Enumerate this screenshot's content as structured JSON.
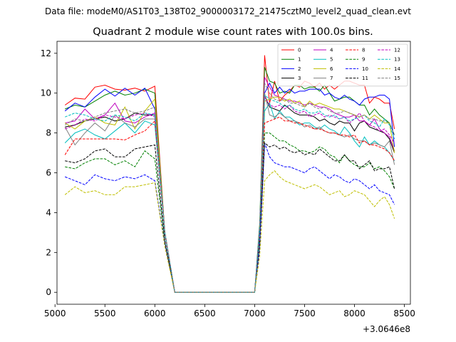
{
  "chart_data": {
    "type": "line",
    "suptitle": "Data file: modeM0/AS1T03_138T02_9000003172_21475cztM0_level2_quad_clean.evt",
    "title": "Quadrant 2 module wise count rates with 100.0s bins.",
    "xlabel": "",
    "ylabel": "",
    "x_offset_label": "+3.0646e8",
    "xlim": [
      5020,
      8560
    ],
    "ylim": [
      -0.6,
      12.6
    ],
    "xticks": [
      5000,
      5500,
      6000,
      6500,
      7000,
      7500,
      8000,
      8500
    ],
    "yticks": [
      0,
      2,
      4,
      6,
      8,
      10,
      12
    ],
    "legend_position": "top-right",
    "legend_columns": 4,
    "x": [
      5100,
      5200,
      5300,
      5400,
      5500,
      5600,
      5700,
      5800,
      5900,
      6000,
      6100,
      6200,
      6300,
      6400,
      6500,
      6600,
      6700,
      6800,
      6900,
      7000,
      7050,
      7100,
      7150,
      7200,
      7250,
      7300,
      7350,
      7400,
      7450,
      7500,
      7550,
      7600,
      7650,
      7700,
      7750,
      7800,
      7850,
      7900,
      7950,
      8000,
      8050,
      8100,
      8150,
      8200,
      8250,
      8300,
      8350,
      8400
    ],
    "series": [
      {
        "name": "0",
        "color": "#ff0000",
        "dash": "solid",
        "values": [
          9.4,
          9.75,
          9.7,
          10.3,
          10.4,
          10.2,
          10.15,
          10.25,
          10.1,
          10.35,
          3,
          0,
          0,
          0,
          0,
          0,
          0,
          0,
          0,
          0,
          3,
          11.9,
          9.5,
          10.6,
          9.6,
          9.9,
          10.1,
          10.4,
          10.3,
          10.6,
          10.5,
          10.3,
          10.5,
          10.2,
          10.4,
          10.2,
          10.4,
          10.6,
          10.6,
          10.5,
          10.4,
          10.4,
          9.5,
          9.8,
          9.7,
          9.5,
          9.5,
          8.2
        ]
      },
      {
        "name": "1",
        "color": "#008000",
        "dash": "solid",
        "values": [
          9.2,
          9.4,
          9.3,
          9.6,
          9.9,
          10.1,
          9.9,
          10.0,
          10.2,
          10.0,
          3,
          0,
          0,
          0,
          0,
          0,
          0,
          0,
          0,
          0,
          3.4,
          11.3,
          10.6,
          10.5,
          10.0,
          10.1,
          10.0,
          10.4,
          10.4,
          10.2,
          10.3,
          10.3,
          10.1,
          10.4,
          10.0,
          9.6,
          9.7,
          9.8,
          9.8,
          9.6,
          9.4,
          9.4,
          8.9,
          9.2,
          8.9,
          8.7,
          8.5,
          7.9
        ]
      },
      {
        "name": "2",
        "color": "#0000ff",
        "dash": "solid",
        "values": [
          9.1,
          9.5,
          9.3,
          9.8,
          10.2,
          9.85,
          10.25,
          9.9,
          10.25,
          9.2,
          3,
          0,
          0,
          0,
          0,
          0,
          0,
          0,
          0,
          0,
          3.2,
          10.0,
          10.5,
          10.0,
          10.3,
          10.0,
          10.2,
          10.0,
          10.1,
          10.1,
          10.2,
          10.2,
          10.2,
          9.9,
          10.0,
          9.8,
          9.7,
          9.9,
          9.7,
          9.6,
          9.4,
          9.7,
          9.8,
          9.8,
          9.9,
          9.9,
          9.7,
          7.3
        ]
      },
      {
        "name": "3",
        "color": "#000000",
        "dash": "solid",
        "values": [
          8.3,
          8.4,
          8.6,
          8.7,
          8.8,
          8.6,
          8.7,
          9.0,
          8.9,
          8.9,
          3,
          0,
          0,
          0,
          0,
          0,
          0,
          0,
          0,
          0,
          2.7,
          9.9,
          9.3,
          9.2,
          9.1,
          9.4,
          9.2,
          9.0,
          8.9,
          8.9,
          8.9,
          8.8,
          8.6,
          8.7,
          8.5,
          8.4,
          8.6,
          8.5,
          8.5,
          8.1,
          8.5,
          8.6,
          8.3,
          8.2,
          8.1,
          8.0,
          7.7,
          7.0
        ]
      },
      {
        "name": "4",
        "color": "#bf00bf",
        "dash": "solid",
        "values": [
          8.5,
          8.6,
          9.2,
          8.7,
          8.9,
          9.5,
          8.6,
          8.5,
          8.8,
          9.0,
          3,
          0,
          0,
          0,
          0,
          0,
          0,
          0,
          0,
          0,
          3,
          10.8,
          10.3,
          9.9,
          9.8,
          9.7,
          9.6,
          9.6,
          9.5,
          9.4,
          9.5,
          9.4,
          9.3,
          9.3,
          9.2,
          9.0,
          8.9,
          8.8,
          8.8,
          8.9,
          8.6,
          8.6,
          8.4,
          8.7,
          8.2,
          8.0,
          7.8,
          7.1
        ]
      },
      {
        "name": "5",
        "color": "#00bfbf",
        "dash": "solid",
        "values": [
          7.5,
          8.0,
          8.2,
          7.9,
          7.7,
          8.1,
          8.5,
          8.0,
          8.6,
          8.4,
          3,
          0,
          0,
          0,
          0,
          0,
          0,
          0,
          0,
          0,
          2.9,
          9.1,
          9.5,
          8.7,
          9.1,
          8.8,
          8.8,
          8.6,
          8.4,
          8.5,
          8.5,
          8.3,
          8.2,
          8.4,
          8.2,
          8.1,
          7.9,
          8.3,
          8.0,
          7.6,
          7.3,
          7.8,
          7.4,
          7.6,
          7.4,
          7.3,
          7.0,
          6.6
        ]
      },
      {
        "name": "6",
        "color": "#bfbf00",
        "dash": "solid",
        "values": [
          8.5,
          8.2,
          8.6,
          8.8,
          8.5,
          8.4,
          9.3,
          8.2,
          9.1,
          9.7,
          3,
          0,
          0,
          0,
          0,
          0,
          0,
          0,
          0,
          0,
          2.5,
          9.6,
          9.7,
          9.8,
          9.8,
          9.6,
          9.7,
          9.5,
          9.6,
          9.3,
          9.6,
          9.4,
          9.5,
          9.4,
          9.3,
          9.2,
          9.2,
          9.1,
          9.0,
          8.9,
          8.8,
          8.9,
          8.7,
          8.9,
          8.7,
          8.5,
          8.5,
          7.0
        ]
      },
      {
        "name": "7",
        "color": "#808080",
        "dash": "solid",
        "values": [
          8.3,
          7.4,
          8.0,
          8.5,
          8.1,
          8.9,
          8.5,
          8.3,
          8.7,
          8.7,
          3,
          0,
          0,
          0,
          0,
          0,
          0,
          0,
          0,
          0,
          3,
          10.0,
          8.9,
          8.8,
          9.0,
          8.8,
          8.6,
          8.6,
          8.5,
          8.3,
          8.4,
          8.2,
          8.3,
          8.1,
          8.0,
          8.0,
          7.9,
          7.8,
          7.9,
          7.7,
          7.6,
          7.6,
          7.4,
          7.5,
          7.4,
          7.3,
          7.6,
          6.4
        ]
      },
      {
        "name": "8",
        "color": "#ff0000",
        "dash": "dashed",
        "values": [
          6.9,
          7.7,
          7.7,
          7.7,
          7.7,
          7.7,
          7.65,
          7.9,
          8.1,
          8.6,
          3,
          0,
          0,
          0,
          0,
          0,
          0,
          0,
          0,
          0,
          2.9,
          8.5,
          8.6,
          8.7,
          8.8,
          8.6,
          8.6,
          8.5,
          8.5,
          8.4,
          8.3,
          8.2,
          8.2,
          8.1,
          8.0,
          8.0,
          7.9,
          7.9,
          7.8,
          7.9,
          7.5,
          7.6,
          7.4,
          7.4,
          7.3,
          7.2,
          7.0,
          6.6
        ]
      },
      {
        "name": "9",
        "color": "#008000",
        "dash": "dashed",
        "values": [
          6.3,
          6.2,
          6.5,
          6.7,
          6.7,
          6.4,
          6.6,
          6.3,
          7.1,
          6.7,
          2.5,
          0,
          0,
          0,
          0,
          0,
          0,
          0,
          0,
          0,
          2.3,
          8.0,
          8.0,
          7.8,
          7.6,
          7.6,
          7.4,
          7.3,
          7.1,
          7.1,
          7.0,
          7.1,
          7.3,
          7.2,
          6.9,
          6.8,
          6.5,
          6.9,
          6.6,
          6.4,
          6.3,
          6.3,
          6.5,
          6.2,
          6.3,
          6.1,
          5.8,
          5.2
        ]
      },
      {
        "name": "10",
        "color": "#0000ff",
        "dash": "dashed",
        "values": [
          5.8,
          5.6,
          5.4,
          5.9,
          5.7,
          5.6,
          5.8,
          5.7,
          5.9,
          5.6,
          2.4,
          0,
          0,
          0,
          0,
          0,
          0,
          0,
          0,
          0,
          2.1,
          7.5,
          6.8,
          6.5,
          6.4,
          6.3,
          6.3,
          6.2,
          6.1,
          6.0,
          6.2,
          6.3,
          6.1,
          5.9,
          5.7,
          5.9,
          5.8,
          5.6,
          5.5,
          5.7,
          5.6,
          5.4,
          5.2,
          5.4,
          5.1,
          5.0,
          4.9,
          4.4
        ]
      },
      {
        "name": "11",
        "color": "#000000",
        "dash": "dashed",
        "values": [
          6.6,
          6.5,
          6.7,
          7.1,
          7.2,
          6.8,
          6.8,
          7.2,
          7.3,
          7.4,
          2.6,
          0,
          0,
          0,
          0,
          0,
          0,
          0,
          0,
          0,
          2.5,
          7.5,
          7.3,
          7.4,
          7.2,
          7.3,
          7.1,
          7.0,
          7.1,
          6.9,
          7.0,
          6.9,
          7.2,
          7.0,
          6.8,
          6.6,
          6.6,
          6.9,
          6.6,
          6.6,
          6.2,
          6.4,
          6.6,
          6.1,
          6.2,
          6.2,
          6.3,
          5.2
        ]
      },
      {
        "name": "12",
        "color": "#bf00bf",
        "dash": "dashed",
        "values": [
          8.2,
          8.4,
          8.7,
          8.6,
          8.9,
          8.8,
          8.7,
          8.9,
          9.0,
          8.8,
          3,
          0,
          0,
          0,
          0,
          0,
          0,
          0,
          0,
          0,
          2.8,
          9.8,
          9.4,
          9.3,
          9.4,
          9.2,
          9.4,
          9.1,
          9.0,
          9.1,
          8.8,
          8.9,
          9.0,
          8.8,
          8.9,
          8.8,
          8.7,
          8.8,
          8.5,
          8.7,
          9.0,
          8.6,
          8.4,
          8.3,
          8.1,
          8.2,
          7.9,
          7.5
        ]
      },
      {
        "name": "13",
        "color": "#00bfbf",
        "dash": "dashed",
        "values": [
          8.8,
          9.0,
          8.9,
          8.7,
          8.6,
          8.9,
          8.8,
          8.6,
          9.0,
          8.9,
          3,
          0,
          0,
          0,
          0,
          0,
          0,
          0,
          0,
          0,
          2.9,
          9.9,
          9.7,
          9.6,
          9.5,
          9.3,
          9.4,
          9.2,
          9.1,
          9.2,
          9.0,
          9.0,
          9.1,
          8.9,
          8.8,
          8.9,
          8.7,
          8.8,
          8.6,
          8.7,
          8.8,
          8.9,
          8.6,
          8.5,
          8.3,
          8.7,
          8.4,
          7.7
        ]
      },
      {
        "name": "14",
        "color": "#bfbf00",
        "dash": "dashed",
        "values": [
          4.9,
          5.3,
          5.0,
          5.1,
          4.9,
          4.9,
          5.3,
          5.3,
          5.4,
          5.5,
          2.3,
          0,
          0,
          0,
          0,
          0,
          0,
          0,
          0,
          0,
          1.8,
          5.6,
          5.9,
          6.1,
          5.8,
          5.6,
          5.5,
          5.4,
          5.3,
          5.2,
          5.3,
          5.4,
          5.3,
          5.1,
          4.9,
          5.0,
          5.1,
          4.8,
          4.9,
          5.1,
          5.0,
          4.9,
          4.6,
          4.3,
          4.6,
          4.8,
          4.4,
          3.7
        ]
      },
      {
        "name": "15",
        "color": "#808080",
        "dash": "dashed",
        "values": [
          8.4,
          8.7,
          8.6,
          8.8,
          9.0,
          9.1,
          9.2,
          9.0,
          9.1,
          9.3,
          3.1,
          0,
          0,
          0,
          0,
          0,
          0,
          0,
          0,
          0,
          3.2,
          10.5,
          10.0,
          9.7,
          9.6,
          9.7,
          9.5,
          9.5,
          9.4,
          9.3,
          9.5,
          9.3,
          9.2,
          9.3,
          9.1,
          9.0,
          9.0,
          9.1,
          9.0,
          8.9,
          8.8,
          8.9,
          8.7,
          8.7,
          8.6,
          8.6,
          8.5,
          7.9
        ]
      }
    ]
  }
}
